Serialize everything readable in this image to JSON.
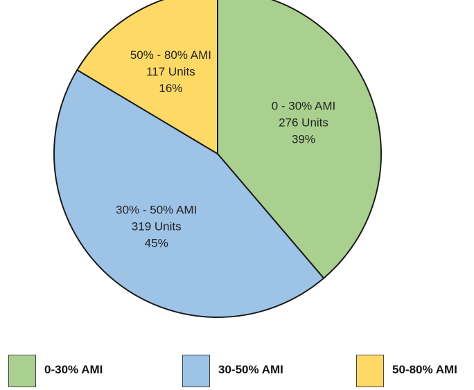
{
  "chart_data": {
    "type": "pie",
    "title": "",
    "start_angle": "12 o'clock",
    "direction": "clockwise",
    "slices": [
      {
        "category": "0 - 30% AMI",
        "units_label": "276 Units",
        "units": 276,
        "percent_label": "39%",
        "percent": 39,
        "color": "#a9d08e"
      },
      {
        "category": "30% - 50% AMI",
        "units_label": "319 Units",
        "units": 319,
        "percent_label": "45%",
        "percent": 45,
        "color": "#9dc3e6"
      },
      {
        "category": "50% - 80% AMI",
        "units_label": "117 Units",
        "units": 117,
        "percent_label": "16%",
        "percent": 16,
        "color": "#ffd966"
      }
    ],
    "legend": {
      "placement": "bottom",
      "items": [
        {
          "label": "0-30% AMI",
          "color": "#a9d08e"
        },
        {
          "label": "30-50% AMI",
          "color": "#9dc3e6"
        },
        {
          "label": "50-80% AMI",
          "color": "#ffd966"
        }
      ]
    },
    "border_color": "#1a1a1a"
  }
}
